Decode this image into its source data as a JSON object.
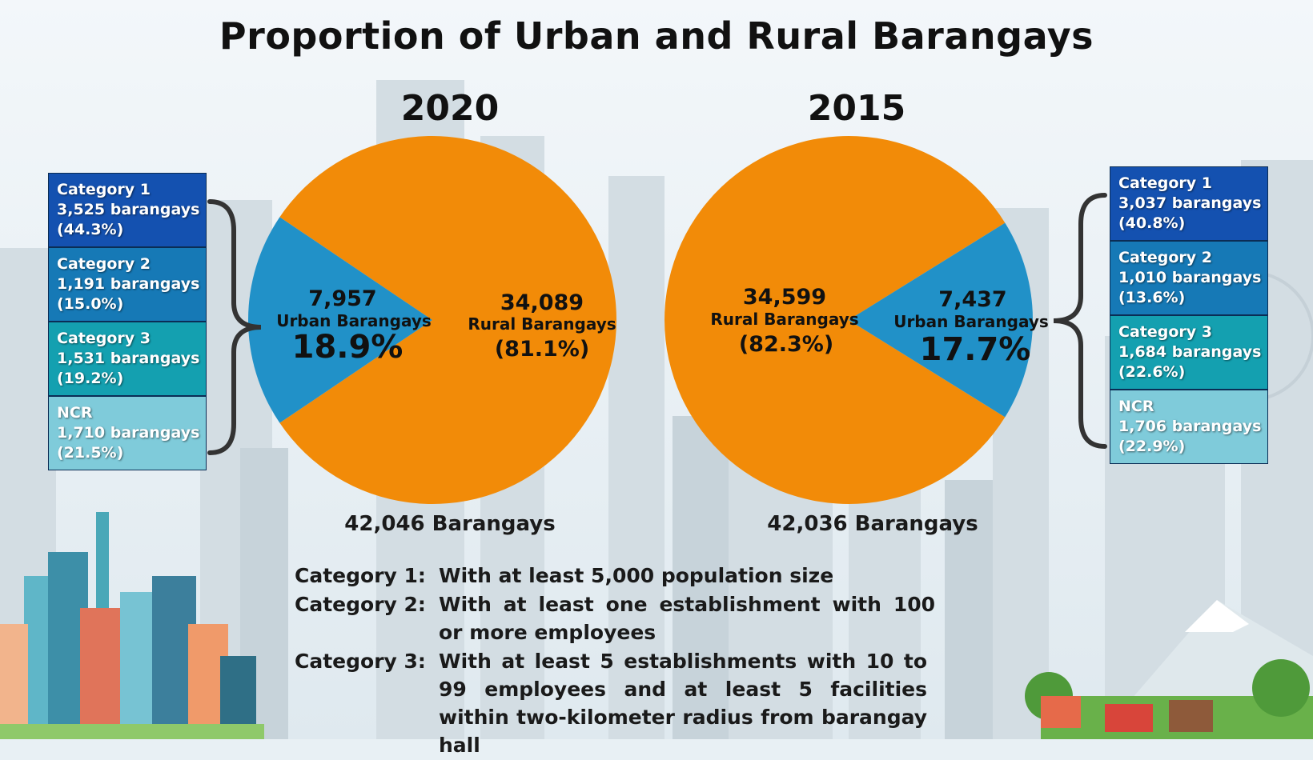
{
  "title": "Proportion of Urban and Rural Barangays",
  "colors": {
    "urban": "#2191c8",
    "rural": "#f28b08",
    "category1": "#1451b0",
    "category2": "#1679b6",
    "category3": "#14a0b0",
    "ncr": "#7fcbda"
  },
  "chart_data": [
    {
      "type": "pie",
      "title": "2020",
      "total_label": "42,046 Barangays",
      "slices": [
        {
          "name": "Urban Barangays",
          "count": 7957,
          "count_label": "7,957",
          "percent": 18.9,
          "percent_label": "18.9%"
        },
        {
          "name": "Rural Barangays",
          "count": 34089,
          "count_label": "34,089",
          "percent": 81.1,
          "percent_label": "(81.1%)"
        }
      ],
      "urban_breakdown": [
        {
          "name": "Category 1",
          "count_label": "3,525 barangays",
          "percent_label": "(44.3%)",
          "count": 3525,
          "percent": 44.3
        },
        {
          "name": "Category 2",
          "count_label": "1,191 barangays",
          "percent_label": "(15.0%)",
          "count": 1191,
          "percent": 15.0
        },
        {
          "name": "Category 3",
          "count_label": "1,531 barangays",
          "percent_label": "(19.2%)",
          "count": 1531,
          "percent": 19.2
        },
        {
          "name": "NCR",
          "count_label": "1,710 barangays",
          "percent_label": "(21.5%)",
          "count": 1710,
          "percent": 21.5
        }
      ]
    },
    {
      "type": "pie",
      "title": "2015",
      "total_label": "42,036 Barangays",
      "slices": [
        {
          "name": "Urban Barangays",
          "count": 7437,
          "count_label": "7,437",
          "percent": 17.7,
          "percent_label": "17.7%"
        },
        {
          "name": "Rural Barangays",
          "count": 34599,
          "count_label": "34,599",
          "percent": 82.3,
          "percent_label": "(82.3%)"
        }
      ],
      "urban_breakdown": [
        {
          "name": "Category 1",
          "count_label": "3,037 barangays",
          "percent_label": "(40.8%)",
          "count": 3037,
          "percent": 40.8
        },
        {
          "name": "Category 2",
          "count_label": "1,010 barangays",
          "percent_label": "(13.6%)",
          "count": 1010,
          "percent": 13.6
        },
        {
          "name": "Category 3",
          "count_label": "1,684 barangays",
          "percent_label": "(22.6%)",
          "count": 1684,
          "percent": 22.6
        },
        {
          "name": "NCR",
          "count_label": "1,706 barangays",
          "percent_label": "(22.9%)",
          "count": 1706,
          "percent": 22.9
        }
      ]
    }
  ],
  "definitions": [
    {
      "label": "Category 1:",
      "text": "With at least 5,000 population size"
    },
    {
      "label": "Category 2:",
      "text": "With at least one establishment with 100 or more employees"
    },
    {
      "label": "Category 3:",
      "text": "With at least 5 establishments with 10 to 99 employees and at least 5 facilities within two-kilometer radius from barangay hall"
    }
  ]
}
